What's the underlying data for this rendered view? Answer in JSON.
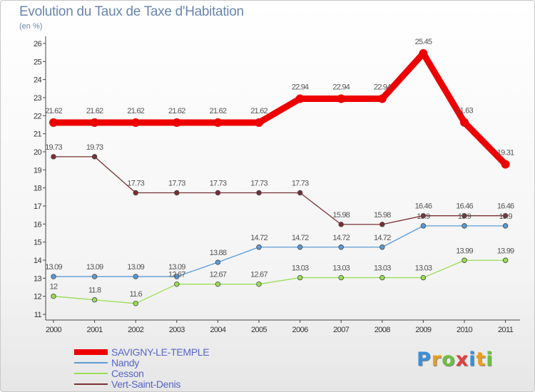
{
  "header": {
    "title": "Evolution du Taux de Taxe d'Habitation",
    "unit": "(en %)"
  },
  "logo": {
    "letters": [
      "P",
      "r",
      "o",
      "x",
      "i",
      "t",
      "i"
    ],
    "colors": [
      "#3a8fd8",
      "#e8a020",
      "#6cc040",
      "#e04040",
      "#3a8fd8",
      "#e8a020",
      "#6cc040"
    ]
  },
  "chart_data": {
    "type": "line",
    "title": "Evolution du Taux de Taxe d'Habitation",
    "ylabel": "(en %)",
    "xlabel": "",
    "x": [
      "2000",
      "2001",
      "2002",
      "2003",
      "2004",
      "2005",
      "2006",
      "2007",
      "2008",
      "2009",
      "2010",
      "2011"
    ],
    "ylim": [
      11,
      26
    ],
    "yticks": [
      11,
      12,
      13,
      14,
      15,
      16,
      17,
      18,
      19,
      20,
      21,
      22,
      23,
      24,
      25,
      26
    ],
    "grid": false,
    "legend_position": "bottom-left",
    "series": [
      {
        "name": "SAVIGNY-LE-TEMPLE",
        "color": "#ee0000",
        "values": [
          21.62,
          21.62,
          21.62,
          21.62,
          21.62,
          21.62,
          22.94,
          22.94,
          22.94,
          25.45,
          21.63,
          19.31
        ],
        "labels": [
          "21.62",
          "21.62",
          "21.62",
          "21.62",
          "21.62",
          "21.62",
          "22.94",
          "22.94",
          "22.94",
          "25.45",
          "21.63",
          "19.31"
        ]
      },
      {
        "name": "Nandy",
        "color": "#5b9bd5",
        "values": [
          13.09,
          13.09,
          13.09,
          13.09,
          13.88,
          14.72,
          14.72,
          14.72,
          14.72,
          15.9,
          15.9,
          15.9
        ],
        "labels": [
          "13.09",
          "13.09",
          "13.09",
          "13.09",
          "13.88",
          "14.72",
          "14.72",
          "14.72",
          "14.72",
          "15.9",
          "15.9",
          "15.9"
        ]
      },
      {
        "name": "Cesson",
        "color": "#99dd55",
        "values": [
          12,
          11.8,
          11.6,
          12.67,
          12.67,
          12.67,
          13.03,
          13.03,
          13.03,
          13.03,
          13.99,
          13.99
        ],
        "labels": [
          "12",
          "11.8",
          "11.6",
          "12.67",
          "12.67",
          "12.67",
          "13.03",
          "13.03",
          "13.03",
          "13.03",
          "13.99",
          "13.99"
        ]
      },
      {
        "name": "Vert-Saint-Denis",
        "color": "#7a2f33",
        "values": [
          19.73,
          19.73,
          17.73,
          17.73,
          17.73,
          17.73,
          17.73,
          15.98,
          15.98,
          16.46,
          16.46,
          16.46
        ],
        "labels": [
          "19.73",
          "19.73",
          "17.73",
          "17.73",
          "17.73",
          "17.73",
          "17.73",
          "15.98",
          "15.98",
          "16.46",
          "16.46",
          "16.46"
        ]
      }
    ]
  }
}
